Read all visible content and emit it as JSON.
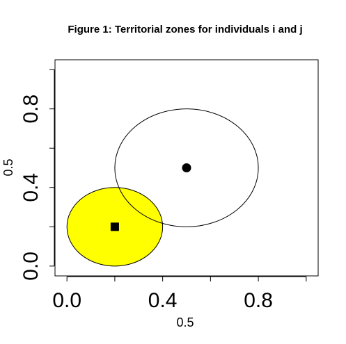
{
  "chart_data": {
    "type": "scatter",
    "title": "Figure 1: Territorial zones for individuals i and j",
    "xlabel": "0.5",
    "ylabel": "0.5",
    "xlim": [
      -0.05,
      1.05
    ],
    "ylim": [
      -0.05,
      1.05
    ],
    "xticks": [
      0.0,
      0.2,
      0.4,
      0.6,
      0.8,
      1.0
    ],
    "xtick_labels": [
      "0.0",
      "",
      "0.4",
      "",
      "0.8",
      ""
    ],
    "yticks": [
      0.0,
      0.2,
      0.4,
      0.6,
      0.8,
      1.0
    ],
    "ytick_labels": [
      "0.0",
      "",
      "0.4",
      "",
      "0.8",
      ""
    ],
    "grid": false,
    "circles": [
      {
        "cx": 0.2,
        "cy": 0.2,
        "r": 0.2,
        "fill": "#ffff00",
        "stroke": "#000000"
      },
      {
        "cx": 0.5,
        "cy": 0.5,
        "r": 0.3,
        "fill": "none",
        "stroke": "#000000"
      }
    ],
    "points": [
      {
        "x": 0.2,
        "y": 0.2,
        "marker": "square",
        "color": "#000000"
      },
      {
        "x": 0.5,
        "y": 0.5,
        "marker": "circle",
        "color": "#000000"
      }
    ]
  }
}
